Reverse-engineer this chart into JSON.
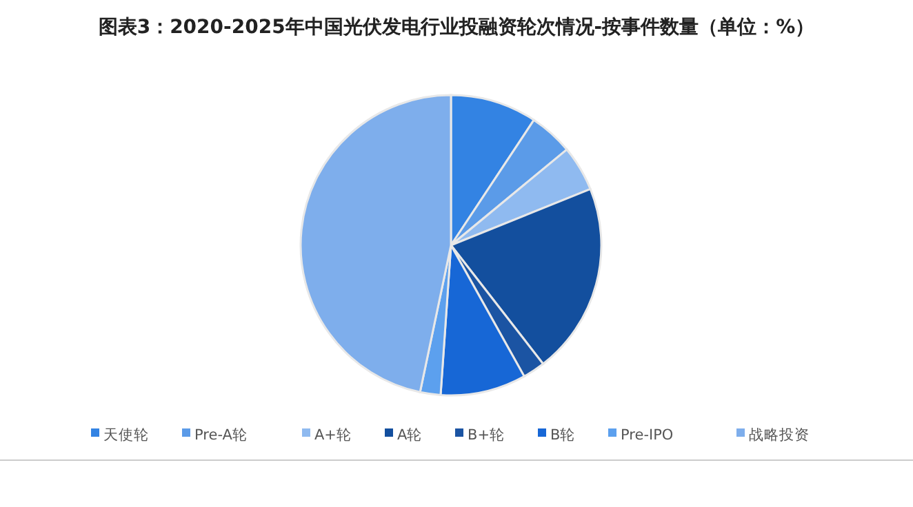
{
  "chart_data": {
    "type": "pie",
    "title": "图表3：2020-2025年中国光伏发电行业投融资轮次情况-按事件数量（单位：%）",
    "categories": [
      "天使轮",
      "Pre-A轮",
      "A+轮",
      "A轮",
      "B+轮",
      "B轮",
      "Pre-IPO",
      "战略投资"
    ],
    "values": [
      9.3,
      4.7,
      4.9,
      20.6,
      2.4,
      9.2,
      2.2,
      46.7
    ],
    "colors": [
      "#3383e3",
      "#5b9be8",
      "#8fbaf0",
      "#134f9e",
      "#1b54a3",
      "#1767d6",
      "#5ca0ee",
      "#7eaeec"
    ],
    "legend": "bottom"
  }
}
